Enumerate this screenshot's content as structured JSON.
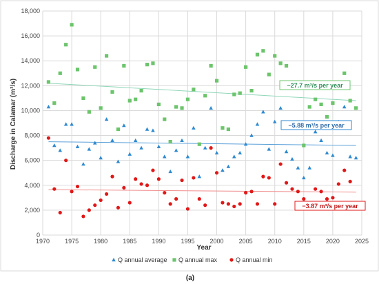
{
  "chart_data": {
    "type": "scatter",
    "xlabel": "Year",
    "ylabel": "Discharge in Calamar (m³/s)",
    "xlim": [
      1970,
      2025
    ],
    "ylim": [
      0,
      18000
    ],
    "xticks": [
      1970,
      1975,
      1980,
      1985,
      1990,
      1995,
      2000,
      2005,
      2010,
      2015,
      2020,
      2025
    ],
    "yticks": [
      0,
      2000,
      4000,
      6000,
      8000,
      10000,
      12000,
      14000,
      16000,
      18000
    ],
    "ytick_labels": [
      "0",
      "2,000",
      "4,000",
      "6,000",
      "8,000",
      "10,000",
      "12,000",
      "14,000",
      "16,000",
      "18,000"
    ],
    "grid": true,
    "legend": "bottom",
    "caption": "(a)",
    "series": [
      {
        "name": "Q annual average",
        "marker": "triangle",
        "color": "#2e8ad0",
        "x": [
          1971,
          1972,
          1973,
          1974,
          1975,
          1976,
          1977,
          1978,
          1979,
          1980,
          1981,
          1982,
          1983,
          1984,
          1985,
          1986,
          1987,
          1988,
          1989,
          1990,
          1991,
          1992,
          1993,
          1994,
          1995,
          1996,
          1997,
          1998,
          1999,
          2000,
          2001,
          2002,
          2003,
          2004,
          2005,
          2006,
          2007,
          2008,
          2009,
          2010,
          2011,
          2012,
          2013,
          2014,
          2015,
          2016,
          2017,
          2018,
          2019,
          2020,
          2021,
          2022,
          2023,
          2024
        ],
        "y": [
          10300,
          7200,
          6800,
          8900,
          8900,
          7100,
          5700,
          6900,
          7400,
          6200,
          9300,
          7600,
          5900,
          8800,
          6500,
          7600,
          7000,
          8500,
          8400,
          7100,
          6300,
          5100,
          6800,
          7600,
          6300,
          8600,
          4700,
          7000,
          10200,
          6600,
          5200,
          5500,
          6300,
          6600,
          7300,
          8000,
          8900,
          9900,
          6900,
          9100,
          10200,
          6700,
          6100,
          5400,
          4600,
          5400,
          8300,
          7600,
          6600,
          6400,
          9100,
          10300,
          6300,
          6200
        ],
        "trend": {
          "start": 7500,
          "end": 7200,
          "label": "−5.88 m³/s per year"
        }
      },
      {
        "name": "Q annual max",
        "marker": "square",
        "color": "#6cc46c",
        "x": [
          1971,
          1972,
          1973,
          1974,
          1975,
          1976,
          1977,
          1978,
          1979,
          1980,
          1981,
          1982,
          1983,
          1984,
          1985,
          1986,
          1987,
          1988,
          1989,
          1990,
          1991,
          1992,
          1993,
          1994,
          1995,
          1996,
          1997,
          1998,
          1999,
          2000,
          2001,
          2002,
          2003,
          2004,
          2005,
          2006,
          2007,
          2008,
          2009,
          2010,
          2011,
          2012,
          2013,
          2014,
          2015,
          2016,
          2017,
          2018,
          2019,
          2020,
          2021,
          2022,
          2023,
          2024
        ],
        "y": [
          12300,
          10600,
          13000,
          15300,
          16900,
          13300,
          11000,
          9900,
          13500,
          10200,
          14400,
          11500,
          8500,
          13600,
          10800,
          10900,
          11600,
          13700,
          13800,
          10500,
          9300,
          7500,
          10300,
          10200,
          10900,
          11700,
          7300,
          11200,
          13600,
          12400,
          8600,
          8500,
          11300,
          11400,
          13500,
          11600,
          14500,
          14800,
          12900,
          14400,
          13800,
          13600,
          8700,
          8900,
          7200,
          10300,
          10900,
          10500,
          9500,
          10600,
          12100,
          13000,
          10800,
          10200
        ],
        "trend": {
          "start": 12200,
          "end": 10800,
          "label": "−27.7 m³/s per year"
        }
      },
      {
        "name": "Q annual min",
        "marker": "circle",
        "color": "#e01818",
        "x": [
          1971,
          1972,
          1973,
          1974,
          1975,
          1976,
          1977,
          1978,
          1979,
          1980,
          1981,
          1982,
          1983,
          1984,
          1985,
          1986,
          1987,
          1988,
          1989,
          1990,
          1991,
          1992,
          1993,
          1994,
          1995,
          1996,
          1997,
          1998,
          1999,
          2000,
          2001,
          2002,
          2003,
          2004,
          2005,
          2006,
          2007,
          2008,
          2009,
          2010,
          2011,
          2012,
          2013,
          2014,
          2015,
          2016,
          2017,
          2018,
          2019,
          2020,
          2021,
          2022,
          2023,
          2024
        ],
        "y": [
          7800,
          3700,
          1800,
          6000,
          3500,
          3900,
          1500,
          2000,
          2400,
          2800,
          3300,
          4700,
          2200,
          3800,
          2600,
          4500,
          4100,
          4000,
          5200,
          4500,
          3400,
          2500,
          2900,
          4400,
          2100,
          4600,
          2900,
          2400,
          7000,
          5000,
          2600,
          2500,
          2300,
          2500,
          3400,
          3500,
          2500,
          4700,
          4600,
          2500,
          5700,
          4200,
          3700,
          3500,
          2900,
          2500,
          3700,
          3500,
          2900,
          3000,
          4100,
          5200,
          4300,
          2600
        ],
        "trend": {
          "start": 3650,
          "end": 3450,
          "label": "−3.87 m³/s per year"
        }
      }
    ]
  }
}
